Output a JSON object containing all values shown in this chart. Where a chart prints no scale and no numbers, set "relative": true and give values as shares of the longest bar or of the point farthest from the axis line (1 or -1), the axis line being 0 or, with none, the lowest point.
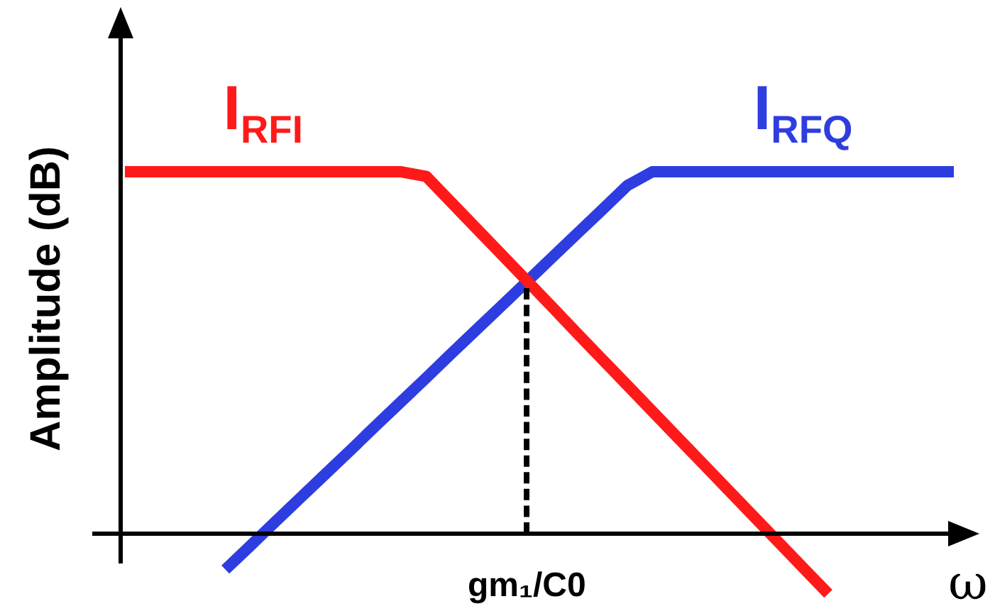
{
  "chart_data": {
    "type": "line",
    "relative": true,
    "ylabel": "Amplitude (dB)",
    "xlabel": "ω",
    "legend": false,
    "marker": "none",
    "line_style": "solid",
    "categories": [
      null,
      null,
      null,
      null,
      null,
      null,
      null,
      null,
      null,
      null,
      null,
      null,
      null,
      null,
      null,
      null,
      null,
      null,
      null,
      null,
      null,
      null,
      null,
      null,
      null,
      null,
      null,
      null,
      null,
      null,
      null,
      null,
      null,
      null
    ],
    "series": [
      {
        "name": "I$_{RFI}$",
        "color": "#ff1a1a",
        "values": [
          1,
          1,
          1,
          1,
          1,
          1,
          1,
          1,
          1,
          1,
          1,
          1,
          0.987,
          0.915,
          0.843,
          0.771,
          0.699,
          0.627,
          0.554,
          0.482,
          0.41,
          0.338,
          0.266,
          0.194,
          0.122,
          0.05,
          -0.022,
          -0.094,
          -0.166,
          null,
          null,
          null,
          null,
          null
        ]
      },
      {
        "name": "I$_{RFQ}$",
        "color": "#2e3de0",
        "values": [
          null,
          null,
          null,
          null,
          -0.099,
          -0.033,
          0.034,
          0.1,
          0.166,
          0.232,
          0.299,
          0.365,
          0.431,
          0.498,
          0.564,
          0.63,
          0.696,
          0.763,
          0.829,
          0.895,
          0.962,
          1,
          1,
          1,
          1,
          1,
          1,
          1,
          1,
          1,
          1,
          1,
          1,
          1
        ]
      }
    ],
    "annotations": [
      "gm₁/C0"
    ]
  }
}
